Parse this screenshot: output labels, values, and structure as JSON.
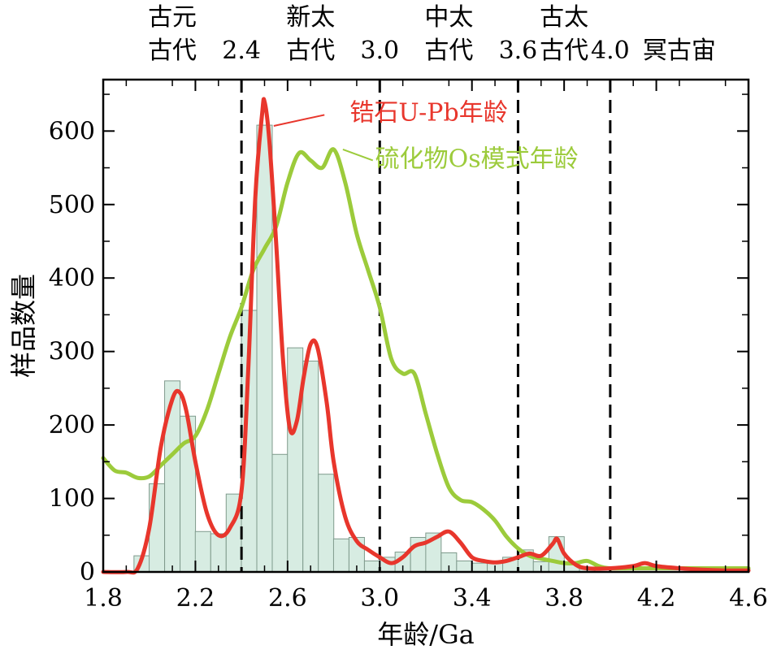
{
  "chart_data": {
    "type": "bar",
    "xlabel": "年龄/Ga",
    "ylabel": "样品数量",
    "xlim": [
      1.8,
      4.6
    ],
    "ylim": [
      0,
      670
    ],
    "xticks": [
      "1.8",
      "2.2",
      "2.6",
      "3.0",
      "3.4",
      "3.8",
      "4.2",
      "4.6"
    ],
    "yticks": [
      "0",
      "100",
      "200",
      "300",
      "400",
      "500",
      "600"
    ],
    "eras": [
      {
        "line1": "古元",
        "line2": "古代",
        "x": 2.1
      },
      {
        "line1": "新太",
        "line2": "古代",
        "x": 2.7
      },
      {
        "line1": "中太",
        "line2": "古代",
        "x": 3.3
      },
      {
        "line1": "古太",
        "line2": "古代",
        "x": 3.8
      },
      {
        "line1": "冥古宙",
        "line2": "",
        "x": 4.3
      }
    ],
    "boundaries": [
      {
        "label": "2.4",
        "x": 2.4
      },
      {
        "label": "3.0",
        "x": 3.0
      },
      {
        "label": "3.6",
        "x": 3.6
      },
      {
        "label": "4.0",
        "x": 4.0
      }
    ],
    "histogram": {
      "bin_width": 0.067,
      "bins": [
        {
          "x": 1.967,
          "count": 22
        },
        {
          "x": 2.033,
          "count": 120
        },
        {
          "x": 2.1,
          "count": 260
        },
        {
          "x": 2.167,
          "count": 212
        },
        {
          "x": 2.233,
          "count": 55
        },
        {
          "x": 2.3,
          "count": 52
        },
        {
          "x": 2.367,
          "count": 106
        },
        {
          "x": 2.433,
          "count": 356
        },
        {
          "x": 2.5,
          "count": 608
        },
        {
          "x": 2.567,
          "count": 160
        },
        {
          "x": 2.633,
          "count": 305
        },
        {
          "x": 2.7,
          "count": 287
        },
        {
          "x": 2.767,
          "count": 133
        },
        {
          "x": 2.833,
          "count": 45
        },
        {
          "x": 2.9,
          "count": 47
        },
        {
          "x": 2.967,
          "count": 15
        },
        {
          "x": 3.033,
          "count": 20
        },
        {
          "x": 3.1,
          "count": 27
        },
        {
          "x": 3.167,
          "count": 47
        },
        {
          "x": 3.233,
          "count": 53
        },
        {
          "x": 3.3,
          "count": 26
        },
        {
          "x": 3.367,
          "count": 15
        },
        {
          "x": 3.433,
          "count": 12
        },
        {
          "x": 3.5,
          "count": 14
        },
        {
          "x": 3.567,
          "count": 20
        },
        {
          "x": 3.633,
          "count": 30
        },
        {
          "x": 3.7,
          "count": 14
        },
        {
          "x": 3.767,
          "count": 48
        },
        {
          "x": 3.833,
          "count": 10
        },
        {
          "x": 3.9,
          "count": 5
        }
      ],
      "color": "#d7ece2",
      "edge": "#7f9a8c"
    },
    "series": [
      {
        "name": "锆石U-Pb年龄",
        "color": "#e8362c",
        "label_x": 2.87,
        "label_y": 625,
        "leader": [
          [
            2.76,
            622
          ],
          [
            2.54,
            607
          ]
        ],
        "x": [
          1.8,
          1.9,
          1.95,
          2.0,
          2.05,
          2.1,
          2.13,
          2.16,
          2.2,
          2.25,
          2.3,
          2.35,
          2.4,
          2.43,
          2.46,
          2.49,
          2.5,
          2.52,
          2.55,
          2.58,
          2.61,
          2.64,
          2.67,
          2.7,
          2.73,
          2.77,
          2.8,
          2.85,
          2.9,
          2.95,
          3.0,
          3.05,
          3.1,
          3.15,
          3.2,
          3.25,
          3.3,
          3.35,
          3.4,
          3.45,
          3.5,
          3.55,
          3.6,
          3.65,
          3.7,
          3.75,
          3.77,
          3.8,
          3.85,
          3.9,
          4.0,
          4.1,
          4.15,
          4.2,
          4.3,
          4.4,
          4.5,
          4.6
        ],
        "y": [
          0,
          0,
          5,
          60,
          170,
          235,
          245,
          220,
          150,
          80,
          50,
          60,
          110,
          280,
          510,
          625,
          640,
          590,
          450,
          290,
          195,
          205,
          265,
          310,
          305,
          230,
          150,
          75,
          42,
          30,
          20,
          12,
          20,
          35,
          40,
          48,
          55,
          40,
          20,
          15,
          13,
          15,
          20,
          25,
          22,
          38,
          45,
          25,
          10,
          5,
          5,
          8,
          12,
          8,
          5,
          3,
          2,
          2
        ]
      },
      {
        "name": "硫化物Os模式年龄",
        "color": "#9ccb3b",
        "label_x": 2.98,
        "label_y": 562,
        "leader": [
          [
            2.97,
            560
          ],
          [
            2.84,
            575
          ]
        ],
        "x": [
          1.8,
          1.85,
          1.9,
          1.95,
          2.0,
          2.05,
          2.1,
          2.15,
          2.2,
          2.25,
          2.3,
          2.35,
          2.4,
          2.45,
          2.5,
          2.55,
          2.6,
          2.65,
          2.7,
          2.75,
          2.8,
          2.85,
          2.9,
          2.95,
          3.0,
          3.05,
          3.1,
          3.15,
          3.2,
          3.25,
          3.3,
          3.35,
          3.4,
          3.45,
          3.5,
          3.55,
          3.6,
          3.65,
          3.7,
          3.75,
          3.8,
          3.85,
          3.9,
          3.95,
          4.0,
          4.1,
          4.2,
          4.3,
          4.6
        ],
        "y": [
          155,
          138,
          135,
          128,
          130,
          145,
          160,
          175,
          185,
          220,
          270,
          320,
          360,
          410,
          440,
          470,
          530,
          570,
          560,
          550,
          575,
          530,
          460,
          410,
          360,
          290,
          270,
          270,
          215,
          160,
          115,
          98,
          95,
          85,
          70,
          48,
          32,
          22,
          18,
          15,
          12,
          12,
          15,
          8,
          5,
          5,
          5,
          5,
          5
        ]
      }
    ]
  }
}
